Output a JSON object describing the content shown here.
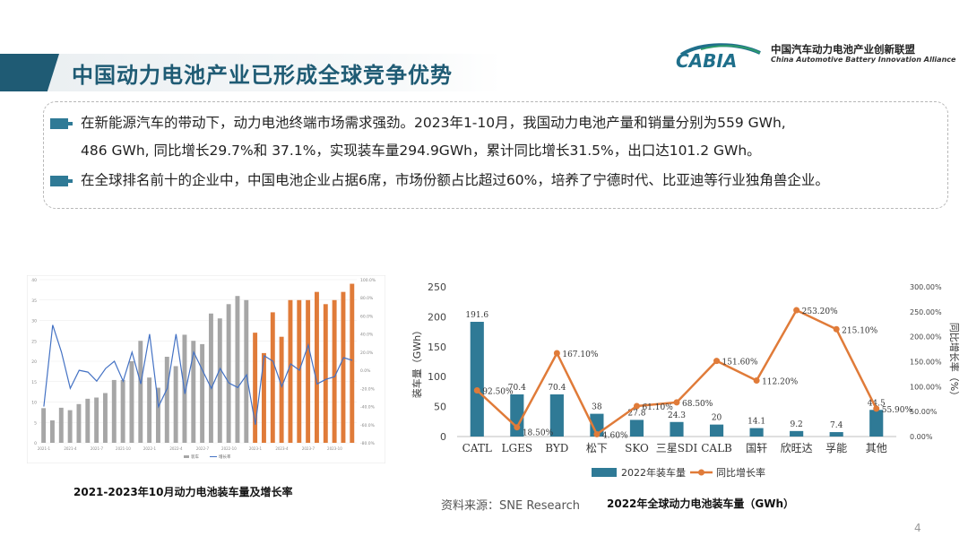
{
  "title": "中国动力电池产业已形成全球竞争优势",
  "logo": {
    "mark": "CABIA",
    "org_cn": "中国汽车动力电池产业创新联盟",
    "org_en": "China Automotive Battery Innovation Alliance"
  },
  "bullets": [
    {
      "line1": "在新能源汽车的带动下，动力电池终端市场需求强劲。2023年1-10月，我国动力电池产量和销量分别为559 GWh,",
      "line2": "486 GWh, 同比增长29.7%和 37.1%，实现装车量294.9GWh，累计同比增长31.5%，出口达101.2 GWh。"
    },
    {
      "line1": "在全球排名前十的企业中，中国电池企业占据6席，市场份额占比超过60%，培养了宁德时代、比亚迪等行业独角兽企业。"
    }
  ],
  "left_chart_caption": "2021-2023年10月动力电池装车量及增长率",
  "right_chart_caption": "2022年全球动力电池装车量（GWh）",
  "source": "资料来源：SNE Research",
  "page_number": "4",
  "colors": {
    "primary": "#1f5b74",
    "bar": "#2f7a96",
    "line": "#e07b39",
    "gray_bar": "#a6a6a6",
    "left_line": "#4472c4"
  },
  "chart_data": [
    {
      "type": "bar",
      "title": "",
      "y_left_ticks": [
        "0",
        "5",
        "10",
        "15",
        "20",
        "25",
        "30",
        "35",
        "40"
      ],
      "y_right_ticks": [
        "-80.0%",
        "-60.0%",
        "-40.0%",
        "-20.0%",
        "0.0%",
        "20.0%",
        "40.0%",
        "60.0%",
        "80.0%",
        "100.0%"
      ],
      "x_ticks": [
        "2021-1",
        "2021-4",
        "2021-7",
        "2021-10",
        "2022-1",
        "2022-4",
        "2022-7",
        "2022-10",
        "2023-1",
        "2023-4",
        "2023-7",
        "2023-10"
      ],
      "ylim": [
        0,
        40
      ],
      "y2lim": [
        -80,
        100
      ],
      "series": [
        {
          "name": "装车",
          "type": "bar",
          "values": [
            8.5,
            5.5,
            8.6,
            8.0,
            9.5,
            10.8,
            11.1,
            12.2,
            15.4,
            15.4,
            20.0,
            25.0,
            16.0,
            13.5,
            21.1,
            18.8,
            26.5,
            25.0,
            24.2,
            31.7,
            30.5,
            34.0,
            36.0,
            35.0,
            27.0,
            22.0,
            32.0,
            26.0,
            35.0,
            35.0,
            35.0,
            37.0,
            34.0,
            35.0,
            37.0,
            39.0
          ]
        },
        {
          "name": "增长率",
          "type": "line",
          "values": [
            -40.0,
            50.0,
            20.0,
            -20.0,
            0.0,
            -2.0,
            -12.0,
            2.0,
            10.0,
            -12.0,
            20.0,
            -15.0,
            40.0,
            -40.0,
            -20.0,
            40.0,
            -26.0,
            20.0,
            0.0,
            -20.0,
            2.0,
            -14.0,
            -19.0,
            -5.0,
            -60.0,
            16.0,
            10.0,
            -18.0,
            7.0,
            0.0,
            28.0,
            -15.0,
            -10.0,
            -7.0,
            14.0,
            11.0
          ]
        }
      ],
      "legend": [
        "装车",
        "增长率"
      ]
    },
    {
      "type": "bar",
      "title": "",
      "categories": [
        "CATL",
        "LGES",
        "BYD",
        "松下",
        "SKO",
        "三星SDI",
        "CALB",
        "国轩",
        "欣旺达",
        "孚能",
        "其他"
      ],
      "ylabel": "装车量（GWh）",
      "y2label": "同比增长率（%）",
      "ylim": [
        0,
        250
      ],
      "y2lim": [
        0,
        300
      ],
      "y_ticks": [
        "0",
        "50",
        "100",
        "150",
        "200",
        "250"
      ],
      "y2_ticks": [
        "0.00%",
        "50.00%",
        "100.00%",
        "150.00%",
        "200.00%",
        "250.00%",
        "300.00%"
      ],
      "series": [
        {
          "name": "2022年装车量",
          "type": "bar",
          "values": [
            191.6,
            70.4,
            70.4,
            38,
            27.8,
            24.3,
            20,
            14.1,
            9.2,
            7.4,
            44.5
          ],
          "labels": [
            "191.6",
            "70.4",
            "70.4",
            "38",
            "27.8",
            "24.3",
            "20",
            "14.1",
            "9.2",
            "7.4",
            "44.5"
          ]
        },
        {
          "name": "同比增长率",
          "type": "line",
          "values": [
            92.5,
            18.5,
            167.1,
            4.6,
            61.1,
            68.5,
            151.6,
            112.2,
            253.2,
            215.1,
            55.9
          ],
          "labels": [
            "92.50%",
            "18.50%",
            "167.10%",
            "4.60%",
            "61.10%",
            "68.50%",
            "151.60%",
            "112.20%",
            "253.20%",
            "215.10%",
            "55.90%"
          ]
        }
      ]
    }
  ]
}
